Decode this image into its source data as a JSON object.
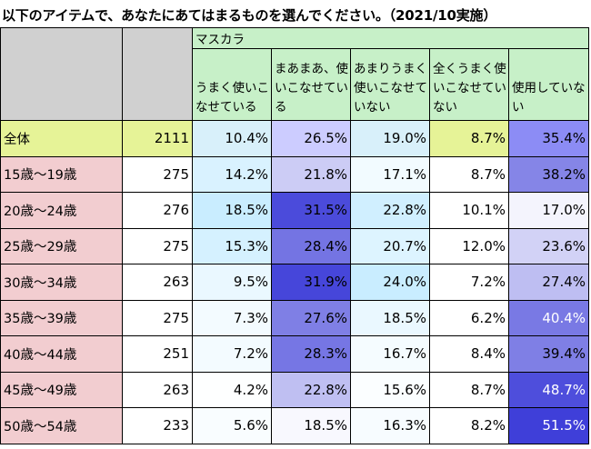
{
  "title": "以下のアイテムで、あなたにあてはまるものを選んでください。（2021/10実施）",
  "item_label": "マスカラ",
  "columns": [
    "うまく使いこなせている",
    "まあまあ、使いこなせている",
    "あまりうまく使いこなせていない",
    "全くうまく使いこなせていない",
    "使用していない"
  ],
  "rows": [
    {
      "label": "全体",
      "n": "2111",
      "values": [
        "10.4%",
        "26.5%",
        "19.0%",
        "8.7%",
        "35.4%"
      ]
    },
    {
      "label": "15歳～19歳",
      "n": "275",
      "values": [
        "14.2%",
        "21.8%",
        "17.1%",
        "8.7%",
        "38.2%"
      ]
    },
    {
      "label": "20歳～24歳",
      "n": "276",
      "values": [
        "18.5%",
        "31.5%",
        "22.8%",
        "10.1%",
        "17.0%"
      ]
    },
    {
      "label": "25歳～29歳",
      "n": "275",
      "values": [
        "15.3%",
        "28.4%",
        "20.7%",
        "12.0%",
        "23.6%"
      ]
    },
    {
      "label": "30歳～34歳",
      "n": "263",
      "values": [
        "9.5%",
        "31.9%",
        "24.0%",
        "7.2%",
        "27.4%"
      ]
    },
    {
      "label": "35歳～39歳",
      "n": "275",
      "values": [
        "7.3%",
        "27.6%",
        "18.5%",
        "6.2%",
        "40.4%"
      ]
    },
    {
      "label": "40歳～44歳",
      "n": "251",
      "values": [
        "7.2%",
        "28.3%",
        "16.7%",
        "8.4%",
        "39.4%"
      ]
    },
    {
      "label": "45歳～49歳",
      "n": "263",
      "values": [
        "4.2%",
        "22.8%",
        "15.6%",
        "8.7%",
        "48.7%"
      ]
    },
    {
      "label": "50歳～54歳",
      "n": "233",
      "values": [
        "5.6%",
        "18.5%",
        "16.3%",
        "8.2%",
        "51.5%"
      ]
    }
  ],
  "colors": {
    "header_green": "#c7f0c8",
    "total_yellow": "#e6f397",
    "age_pink": "#f2cdd0",
    "gray": "#d0d0d0",
    "heat_low": "#ffffff",
    "heat_high": "#3a3acc"
  }
}
